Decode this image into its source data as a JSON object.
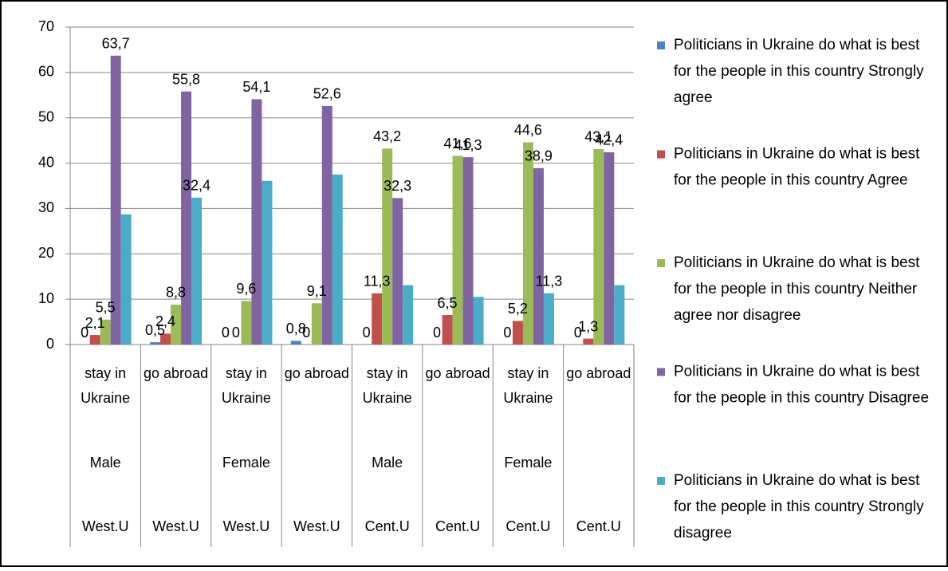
{
  "chart_data": {
    "type": "bar",
    "categories": [
      "stay in Ukraine",
      "go abroad",
      "stay in Ukraine",
      "go abroad",
      "stay in Ukraine",
      "go abroad",
      "stay in Ukraine",
      "go abroad"
    ],
    "category_groups": [
      "Male",
      null,
      "Female",
      null,
      "Male",
      null,
      "Female",
      null
    ],
    "category_regions": [
      "West.U",
      "West.U",
      "West.U",
      "West.U",
      "Cent.U",
      "Cent.U",
      "Cent.U",
      "Cent.U"
    ],
    "series": [
      {
        "name": "Politicians in Ukraine do what is best for the people in this country  Strongly agree",
        "color": "#4f81bd",
        "values": [
          0,
          0.5,
          0,
          0.8,
          0,
          0,
          0,
          0
        ],
        "value_labels": [
          "0",
          "0,5",
          "0",
          "0,8",
          "0",
          "0",
          "0",
          "0"
        ]
      },
      {
        "name": "Politicians in Ukraine do what is best for the people in this country  Agree",
        "color": "#c0504d",
        "values": [
          2.1,
          2.4,
          0,
          0,
          11.3,
          6.5,
          5.2,
          1.3
        ],
        "value_labels": [
          "2,1",
          "2,4",
          "0",
          "0",
          "11,3",
          "6,5",
          "5,2",
          "1,3"
        ]
      },
      {
        "name": "Politicians in Ukraine do what is best for the people in this country  Neither agree nor disagree",
        "color": "#9bbb59",
        "values": [
          5.5,
          8.8,
          9.6,
          9.1,
          43.2,
          41.6,
          44.6,
          43.1
        ],
        "value_labels": [
          "5,5",
          "8,8",
          "9,6",
          "9,1",
          "43,2",
          "41,6",
          "44,6",
          "43,1"
        ]
      },
      {
        "name": "Politicians in Ukraine do what is best for the people in this country  Disagree",
        "color": "#8064a2",
        "values": [
          63.7,
          55.8,
          54.1,
          52.6,
          32.3,
          41.3,
          38.9,
          42.4
        ],
        "value_labels": [
          "63,7",
          "55,8",
          "54,1",
          "52,6",
          "32,3",
          "41,3",
          "38,9",
          "42,4"
        ]
      },
      {
        "name": "Politicians in Ukraine do what is best for the people in this country  Strongly disagree",
        "color": "#4bacc6",
        "values": [
          28.7,
          32.4,
          36.1,
          37.5,
          13.1,
          10.5,
          11.3,
          13.1
        ],
        "value_labels": [
          null,
          "32,4",
          null,
          null,
          null,
          null,
          "11,3",
          null
        ]
      }
    ],
    "ylim": [
      0,
      70
    ],
    "yticks": [
      0,
      10,
      20,
      30,
      40,
      50,
      60,
      70
    ],
    "grid": true,
    "legend": "right"
  }
}
